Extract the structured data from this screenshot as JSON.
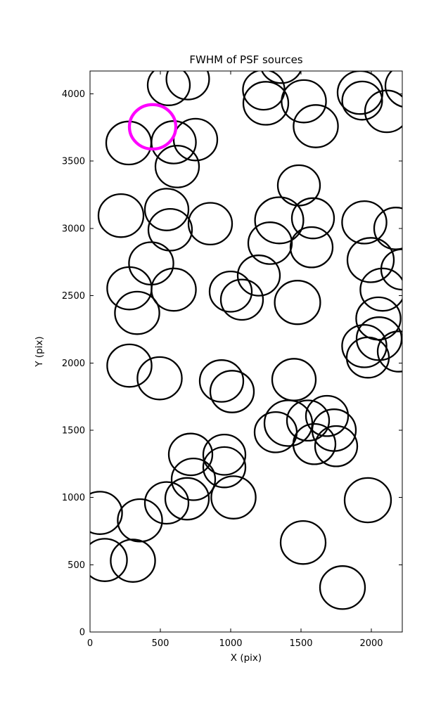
{
  "chart_data": {
    "type": "scatter",
    "title": "FWHM of PSF sources",
    "xlabel": "X (pix)",
    "ylabel": "Y (pix)",
    "xlim": [
      0,
      2220
    ],
    "ylim": [
      0,
      4170
    ],
    "xticks": [
      0,
      500,
      1000,
      1500,
      2000
    ],
    "xtick_labels": [
      "0",
      "500",
      "1000",
      "1500",
      "2000"
    ],
    "yticks": [
      0,
      500,
      1000,
      1500,
      2000,
      2500,
      3000,
      3500,
      4000
    ],
    "ytick_labels": [
      "0",
      "500",
      "1000",
      "1500",
      "2000",
      "2500",
      "3000",
      "3500",
      "4000"
    ],
    "grid": false,
    "legend": "none",
    "marker": "circle-outline",
    "colors": {
      "circle": "#000000",
      "highlight": "#ff00ff",
      "axes": "#000000"
    },
    "circle_stroke_width": 2.3,
    "highlight_stroke_width": 4.3,
    "circles_xyr": [
      [
        560,
        4065,
        150
      ],
      [
        695,
        4110,
        152
      ],
      [
        275,
        3635,
        160
      ],
      [
        595,
        3640,
        158
      ],
      [
        750,
        3660,
        155
      ],
      [
        620,
        3460,
        155
      ],
      [
        1235,
        4030,
        148
      ],
      [
        1250,
        3930,
        160
      ],
      [
        1360,
        4230,
        150
      ],
      [
        1520,
        3945,
        158
      ],
      [
        1920,
        4010,
        160
      ],
      [
        1935,
        3950,
        142
      ],
      [
        2110,
        3870,
        155
      ],
      [
        2260,
        4060,
        160
      ],
      [
        1605,
        3760,
        158
      ],
      [
        220,
        3095,
        160
      ],
      [
        545,
        3140,
        155
      ],
      [
        570,
        2990,
        155
      ],
      [
        855,
        3035,
        155
      ],
      [
        1485,
        3320,
        150
      ],
      [
        1345,
        3060,
        172
      ],
      [
        1585,
        3075,
        150
      ],
      [
        1575,
        2860,
        150
      ],
      [
        1280,
        2890,
        155
      ],
      [
        1950,
        3045,
        158
      ],
      [
        2175,
        3000,
        155
      ],
      [
        1995,
        2765,
        165
      ],
      [
        2220,
        2695,
        150
      ],
      [
        2080,
        2545,
        158
      ],
      [
        435,
        2740,
        158
      ],
      [
        280,
        2555,
        158
      ],
      [
        595,
        2545,
        158
      ],
      [
        335,
        2372,
        158
      ],
      [
        1000,
        2530,
        150
      ],
      [
        1080,
        2470,
        150
      ],
      [
        1200,
        2650,
        150
      ],
      [
        1475,
        2450,
        162
      ],
      [
        2050,
        2330,
        158
      ],
      [
        2055,
        2180,
        160
      ],
      [
        1950,
        2125,
        158
      ],
      [
        1975,
        2040,
        150
      ],
      [
        2195,
        2085,
        150
      ],
      [
        280,
        1980,
        158
      ],
      [
        495,
        1886,
        158
      ],
      [
        935,
        1866,
        155
      ],
      [
        1010,
        1787,
        155
      ],
      [
        1450,
        1876,
        155
      ],
      [
        1410,
        1552,
        170
      ],
      [
        1550,
        1572,
        150
      ],
      [
        1685,
        1606,
        150
      ],
      [
        1735,
        1500,
        155
      ],
      [
        1595,
        1397,
        150
      ],
      [
        1750,
        1381,
        150
      ],
      [
        1320,
        1485,
        150
      ],
      [
        715,
        1320,
        155
      ],
      [
        955,
        1318,
        150
      ],
      [
        955,
        1225,
        150
      ],
      [
        735,
        1135,
        155
      ],
      [
        690,
        990,
        155
      ],
      [
        545,
        960,
        155
      ],
      [
        1020,
        1000,
        158
      ],
      [
        355,
        830,
        158
      ],
      [
        70,
        885,
        158
      ],
      [
        1975,
        980,
        165
      ],
      [
        1515,
        665,
        160
      ],
      [
        105,
        535,
        158
      ],
      [
        305,
        530,
        158
      ],
      [
        1795,
        330,
        160
      ]
    ],
    "highlight_circle": {
      "x": 445,
      "y": 3755,
      "r": 165
    }
  }
}
